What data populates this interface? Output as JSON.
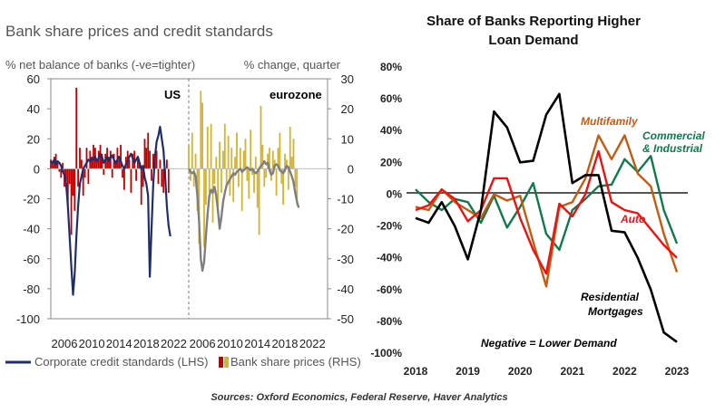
{
  "chart_data": [
    {
      "type": "bar",
      "title": "Bank share prices and credit standards",
      "left_axis_label": "% net balance of banks (-ve=tighter)",
      "right_axis_label": "% change, quarter",
      "regions": [
        "US",
        "eurozone"
      ],
      "ylim_left": [
        -100,
        60
      ],
      "ylim_right": [
        -50,
        30
      ],
      "left_ticks": [
        "60",
        "40",
        "20",
        "0",
        "-20",
        "-40",
        "-60",
        "-80",
        "-100"
      ],
      "right_ticks": [
        "30",
        "20",
        "10",
        "0",
        "-10",
        "-20",
        "-30",
        "-40",
        "-50"
      ],
      "x_ticks": [
        "2006",
        "2010",
        "2014",
        "2018",
        "2022",
        "2006",
        "2010",
        "2014",
        "2018",
        "2022"
      ],
      "legend": [
        {
          "name": "Corporate credit standards (LHS)",
          "color": "#1f2d6e"
        },
        {
          "name": "Bank share prices (RHS)",
          "color": "#c00000"
        }
      ],
      "series": [
        {
          "name": "Corporate credit standards (LHS)",
          "region": "US",
          "x_start": 2004,
          "x_step": 0.25,
          "values": [
            5,
            4,
            6,
            3,
            5,
            4,
            2,
            -2,
            -4,
            -10,
            -25,
            -45,
            -65,
            -84,
            -70,
            -45,
            -25,
            -10,
            -5,
            0,
            2,
            4,
            6,
            5,
            7,
            6,
            8,
            5,
            7,
            10,
            8,
            4,
            6,
            8,
            5,
            7,
            9,
            6,
            4,
            6,
            8,
            5,
            2,
            0,
            3,
            5,
            8,
            10,
            7,
            4,
            6,
            8,
            4,
            0,
            2,
            -6,
            -10,
            -18,
            -72,
            -40,
            -10,
            8,
            18,
            22,
            28,
            20,
            12,
            -5,
            -25,
            -38,
            -45
          ]
        },
        {
          "name": "Bank share prices (RHS)",
          "region": "US",
          "x_start": 2004,
          "x_step": 0.25,
          "values": [
            3,
            2,
            4,
            5,
            2,
            -1,
            -3,
            2,
            -6,
            -4,
            -12,
            -5,
            -22,
            -9,
            -14,
            27,
            -6,
            7,
            3,
            -9,
            -3,
            7,
            -5,
            6,
            4,
            8,
            7,
            3,
            6,
            8,
            5,
            -2,
            5,
            7,
            4,
            6,
            -3,
            5,
            2,
            7,
            3,
            8,
            -3,
            -7,
            4,
            6,
            3,
            -8,
            5,
            6,
            -4,
            3,
            2,
            -12,
            -6,
            10,
            7,
            12,
            6,
            -4,
            5,
            3,
            6,
            -5,
            3,
            -6,
            -8,
            -3,
            3,
            -8
          ]
        },
        {
          "name": "Corporate credit standards (LHS)",
          "region": "eurozone",
          "x_start": 2004,
          "x_step": 0.25,
          "values": [
            0,
            -2,
            -3,
            -2,
            -5,
            -18,
            -35,
            -60,
            -68,
            -62,
            -45,
            -30,
            -18,
            -14,
            -16,
            -12,
            -18,
            -28,
            -40,
            -32,
            -22,
            -16,
            -11,
            -9,
            -7,
            -5,
            -3,
            -4,
            -2,
            -1,
            0,
            -2,
            -1,
            0,
            1,
            0,
            -1,
            0,
            -2,
            -3,
            -2,
            0,
            2,
            3,
            5,
            3,
            4,
            -1,
            -4,
            -3,
            2,
            3,
            2,
            -1,
            -2,
            -3,
            -1,
            2,
            1,
            -2,
            -5,
            -9,
            -16,
            -22,
            -26
          ]
        },
        {
          "name": "Bank share prices (RHS)",
          "region": "eurozone",
          "x_start": 2004,
          "x_step": 0.25,
          "values": [
            8,
            -4,
            12,
            -6,
            5,
            -14,
            -25,
            26,
            22,
            -26,
            -12,
            14,
            -8,
            15,
            -18,
            -5,
            4,
            -14,
            9,
            -8,
            6,
            15,
            -6,
            11,
            -9,
            7,
            -11,
            4,
            12,
            -6,
            7,
            -14,
            6,
            10,
            -4,
            -10,
            13,
            -2,
            -8,
            4,
            -13,
            -22,
            21,
            8,
            -6,
            -3,
            5,
            7,
            -4,
            6,
            3,
            -9,
            7,
            12,
            -5,
            -12,
            5,
            3,
            -7,
            14,
            4,
            10,
            -6,
            -12
          ]
        }
      ]
    },
    {
      "type": "line",
      "title": "Share of Banks Reporting Higher Loan Demand",
      "ylim": [
        -100,
        80
      ],
      "y_ticks": [
        "80%",
        "60%",
        "40%",
        "20%",
        "0%",
        "-20%",
        "-40%",
        "-60%",
        "-80%",
        "-100%"
      ],
      "x_ticks": [
        "2018",
        "2019",
        "2020",
        "2021",
        "2022",
        "2023"
      ],
      "annotation": "Negative = Lower Demand",
      "series": [
        {
          "name": "Residential Mortgages",
          "color": "#000000",
          "x_start": 2018,
          "x_step": 0.25,
          "values": [
            -15,
            -18,
            -5,
            -20,
            -41,
            -10,
            52,
            42,
            20,
            21,
            50,
            63,
            7,
            12,
            12,
            -23,
            -24,
            -40,
            -60,
            -87,
            -93
          ]
        },
        {
          "name": "Multifamily",
          "color": "#c55a11",
          "x_start": 2018,
          "x_step": 0.25,
          "values": [
            -8,
            -10,
            3,
            -5,
            -10,
            -15,
            0,
            -4,
            -1,
            -30,
            -58,
            -8,
            -5,
            10,
            37,
            22,
            37,
            13,
            5,
            -25,
            -49
          ]
        },
        {
          "name": "Commercial & Industrial",
          "color": "#0f7a4a",
          "x_start": 2018,
          "x_step": 0.25,
          "values": [
            3,
            -5,
            -10,
            -3,
            -5,
            -18,
            -1,
            -21,
            -8,
            7,
            -25,
            -35,
            -10,
            -3,
            5,
            6,
            22,
            14,
            24,
            -10,
            -31
          ]
        },
        {
          "name": "Auto",
          "color": "#ee1111",
          "x_start": 2018,
          "x_step": 0.25,
          "values": [
            -10,
            -7,
            3,
            -3,
            -17,
            -10,
            10,
            10,
            -15,
            -35,
            -50,
            -6,
            -14,
            0,
            27,
            -5,
            -10,
            -12,
            -22,
            -32,
            -40
          ]
        }
      ]
    }
  ],
  "source": "Sources: Oxford Economics, Federal Reserve, Haver Analytics"
}
